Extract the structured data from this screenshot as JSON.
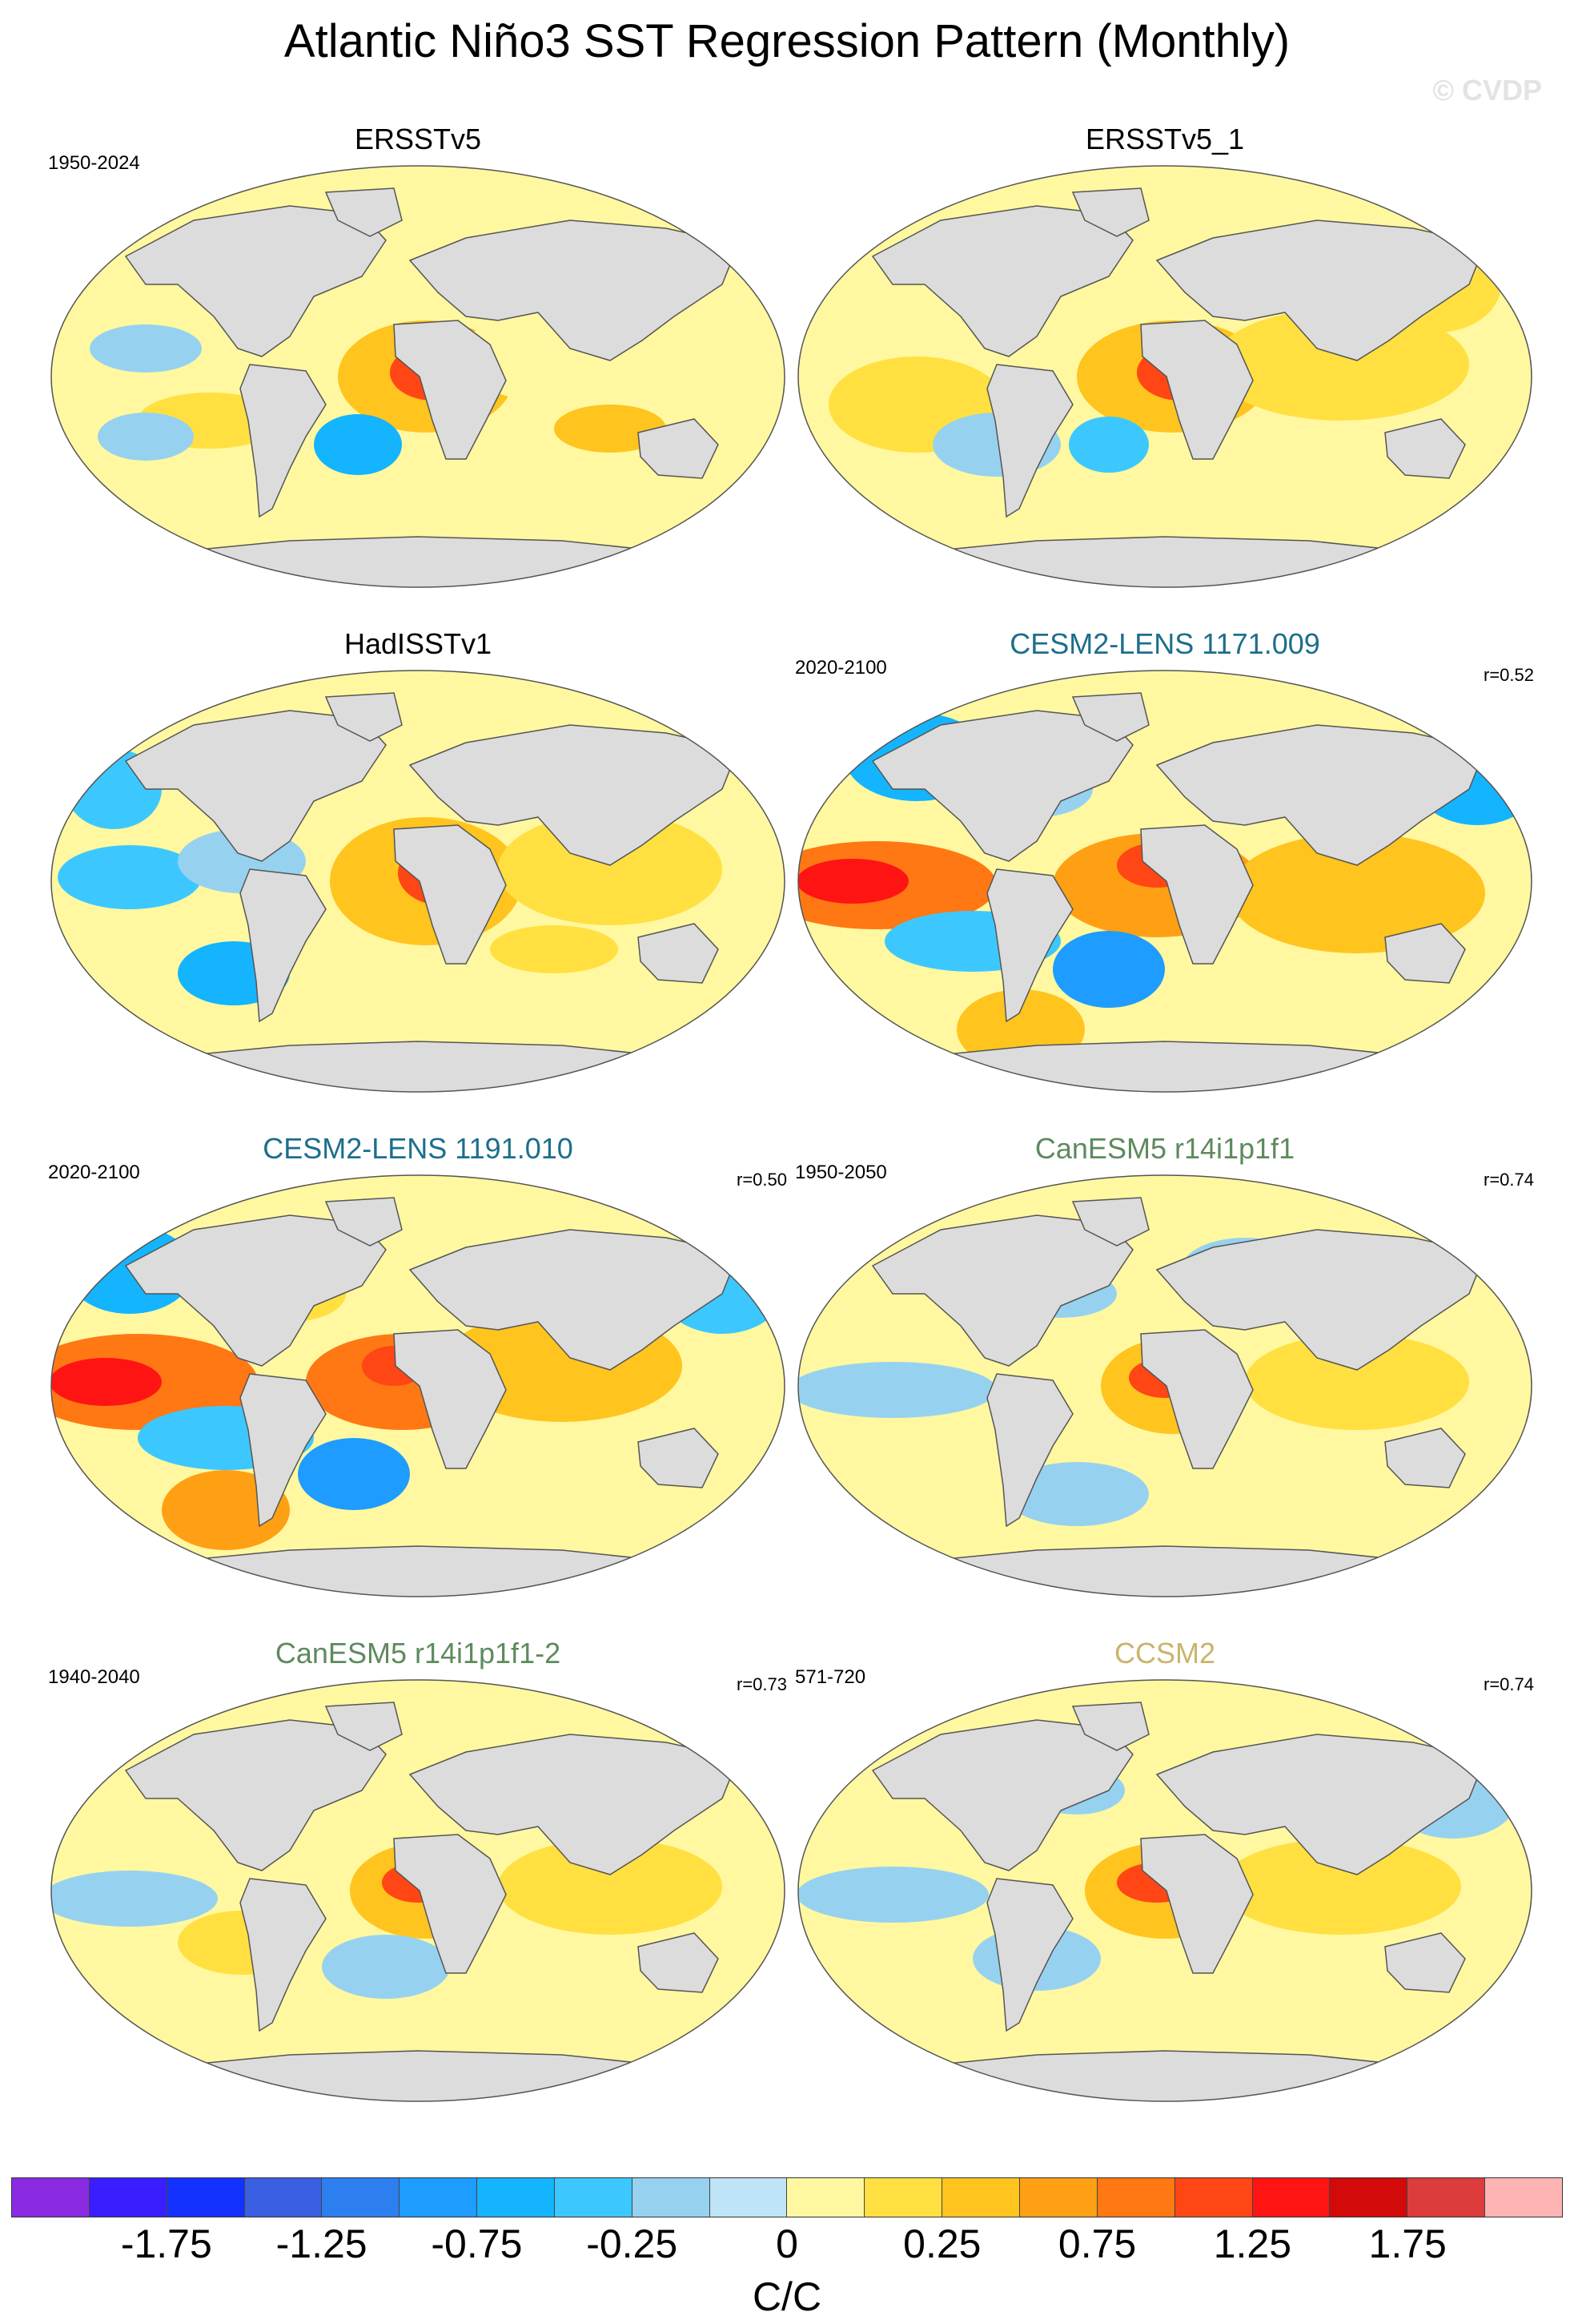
{
  "title": "Atlantic Niño3 SST Regression Pattern (Monthly)",
  "watermark": "© CVDP",
  "panels": [
    {
      "title": "ERSSTv5",
      "title_color": "#000000",
      "period": "1950-2024",
      "correlation": "",
      "pattern": "obs1"
    },
    {
      "title": "ERSSTv5_1",
      "title_color": "#000000",
      "period": "",
      "correlation": "",
      "pattern": "obs2"
    },
    {
      "title": "HadISSTv1",
      "title_color": "#000000",
      "period": "",
      "correlation": "",
      "pattern": "obs3"
    },
    {
      "title": "CESM2-LENS 1171.009",
      "title_color": "#1d6e8c",
      "period": "2020-2100",
      "correlation": "r=0.52",
      "pattern": "cesm1"
    },
    {
      "title": "CESM2-LENS 1191.010",
      "title_color": "#1d6e8c",
      "period": "2020-2100",
      "correlation": "r=0.50",
      "pattern": "cesm2"
    },
    {
      "title": "CanESM5 r14i1p1f1",
      "title_color": "#5e8a5e",
      "period": "1950-2050",
      "correlation": "r=0.74",
      "pattern": "can1"
    },
    {
      "title": "CanESM5 r14i1p1f1-2",
      "title_color": "#5e8a5e",
      "period": "1940-2040",
      "correlation": "r=0.73",
      "pattern": "can2"
    },
    {
      "title": "CCSM2",
      "title_color": "#c9b46a",
      "period": "571-720",
      "correlation": "r=0.74",
      "pattern": "ccsm"
    }
  ],
  "colorbar": {
    "colors": [
      "#8a2be2",
      "#3a1eff",
      "#1432ff",
      "#3a5fe0",
      "#2d7ff0",
      "#1e9cff",
      "#14b4ff",
      "#3cc8ff",
      "#96d2f0",
      "#bfe3f7",
      "#fff8a0",
      "#ffe040",
      "#ffc41e",
      "#ffa014",
      "#ff7814",
      "#ff4614",
      "#ff1414",
      "#d20a0a",
      "#dc3c3c",
      "#ffb4b4"
    ],
    "labels": [
      "-1.75",
      "-1.25",
      "-0.75",
      "-0.25",
      "0",
      "0.25",
      "0.75",
      "1.25",
      "1.75"
    ],
    "units": "C/C"
  }
}
